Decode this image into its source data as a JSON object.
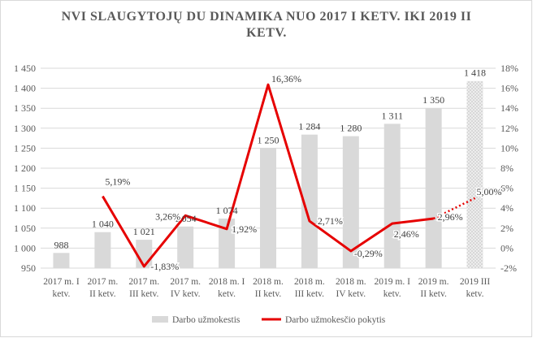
{
  "chart_data": {
    "type": "bar",
    "title_lines": [
      "NVI SLAUGYTOJŲ DU DINAMIKA NUO 2017 I KETV. IKI 2019 II",
      "KETV."
    ],
    "categories": [
      [
        "2017 m. I",
        "ketv."
      ],
      [
        "2017 m.",
        "II ketv."
      ],
      [
        "2017 m.",
        "III ketv."
      ],
      [
        "2017 m.",
        "IV ketv."
      ],
      [
        "2018 m. I",
        "ketv."
      ],
      [
        "2018 m.",
        "II ketv."
      ],
      [
        "2018 m.",
        "III ketv."
      ],
      [
        "2018 m.",
        "IV ketv."
      ],
      [
        "2019 m. I",
        "ketv."
      ],
      [
        "2019 m.",
        "II ketv."
      ],
      [
        "2019 III",
        "ketv."
      ]
    ],
    "series": [
      {
        "name": "Darbo užmokestis",
        "kind": "bar",
        "axis": "left",
        "values": [
          988,
          1040,
          1021,
          1054,
          1074,
          1250,
          1284,
          1280,
          1311,
          1350,
          1418
        ],
        "labels": [
          "988",
          "1 040",
          "1 021",
          "1 054",
          "1 074",
          "1 250",
          "1 284",
          "1 280",
          "1 311",
          "1 350",
          "1 418"
        ],
        "color": "#d9d9d9",
        "last_forecast_pattern": true
      },
      {
        "name": "Darbo užmokesčio pokytis",
        "kind": "line",
        "axis": "right",
        "values": [
          null,
          5.19,
          -1.83,
          3.26,
          1.92,
          16.36,
          2.71,
          -0.29,
          2.46,
          2.96,
          5.0
        ],
        "labels": [
          null,
          "5,19%",
          "-1,83%",
          "3,26%",
          "1,92%",
          "16,36%",
          "2,71%",
          "-0,29%",
          "2,46%",
          "2,96%",
          "5,00%"
        ],
        "color": "#e60000",
        "last_segment_dotted": true
      }
    ],
    "y_left": {
      "min": 950,
      "max": 1450,
      "step": 50,
      "tick_labels": [
        "950",
        "1 000",
        "1 050",
        "1 100",
        "1 150",
        "1 200",
        "1 250",
        "1 300",
        "1 350",
        "1 400",
        "1 450"
      ]
    },
    "y_right": {
      "min": -2,
      "max": 18,
      "step": 2,
      "tick_labels": [
        "-2%",
        "0%",
        "2%",
        "4%",
        "6%",
        "8%",
        "10%",
        "12%",
        "14%",
        "16%",
        "18%"
      ]
    },
    "grid": true,
    "legend": "bottom"
  }
}
